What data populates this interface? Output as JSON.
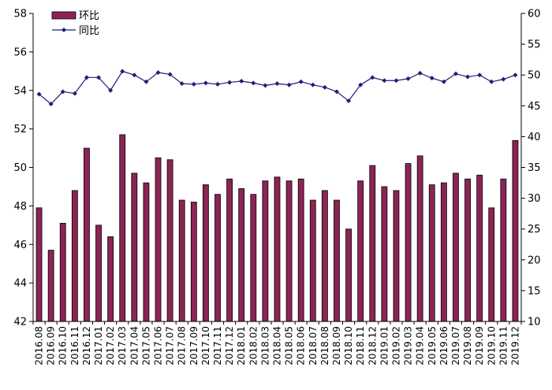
{
  "chart_data": {
    "type": "bar+line",
    "categories": [
      "2016.08",
      "2016.09",
      "2016.10",
      "2016.11",
      "2016.12",
      "2017.01",
      "2017.02",
      "2017.03",
      "2017.04",
      "2017.05",
      "2017.06",
      "2017.07",
      "2017.08",
      "2017.09",
      "2017.10",
      "2017.11",
      "2017.12",
      "2018.01",
      "2018.02",
      "2018.03",
      "2018.04",
      "2018.05",
      "2018.06",
      "2018.07",
      "2018.08",
      "2018.09",
      "2018.10",
      "2018.11",
      "2018.12",
      "2019.01",
      "2019.02",
      "2019.03",
      "2019.04",
      "2019.05",
      "2019.06",
      "2019.07",
      "2019.08",
      "2019.09",
      "2019.10",
      "2019.11",
      "2019.12"
    ],
    "series": [
      {
        "name": "环比",
        "type": "bar",
        "axis": "left",
        "color": "#8B2455",
        "values": [
          47.9,
          45.7,
          47.1,
          48.8,
          51.0,
          47.0,
          46.4,
          51.7,
          49.7,
          49.2,
          50.5,
          50.4,
          48.3,
          48.2,
          49.1,
          48.6,
          49.4,
          48.9,
          48.6,
          49.3,
          49.5,
          49.3,
          49.4,
          48.3,
          48.8,
          48.3,
          46.8,
          49.3,
          50.1,
          49.0,
          48.8,
          50.2,
          50.6,
          49.1,
          49.2,
          49.7,
          49.4,
          49.6,
          47.9,
          49.4,
          51.4
        ]
      },
      {
        "name": "同比",
        "type": "line",
        "axis": "right",
        "color": "#1F1F7A",
        "values": [
          46.9,
          45.3,
          47.3,
          47.0,
          49.6,
          49.6,
          47.5,
          50.6,
          50.0,
          48.9,
          50.4,
          50.1,
          48.6,
          48.5,
          48.7,
          48.5,
          48.8,
          49.0,
          48.7,
          48.3,
          48.6,
          48.4,
          48.9,
          48.4,
          48.0,
          47.3,
          45.8,
          48.4,
          49.6,
          49.1,
          49.1,
          49.4,
          50.3,
          49.5,
          48.9,
          50.2,
          49.7,
          50.0,
          48.9,
          49.3,
          50.0
        ]
      }
    ],
    "y_left": {
      "min": 42,
      "max": 58,
      "ticks": [
        "42",
        "44",
        "46",
        "48",
        "50",
        "52",
        "54",
        "56",
        "58"
      ]
    },
    "y_right": {
      "min": 10,
      "max": 60,
      "ticks": [
        "10",
        "15",
        "20",
        "25",
        "30",
        "35",
        "40",
        "45",
        "50",
        "55",
        "60"
      ]
    },
    "legend": {
      "position": "top-left",
      "items": [
        "环比",
        "同比"
      ]
    },
    "grid": false
  }
}
